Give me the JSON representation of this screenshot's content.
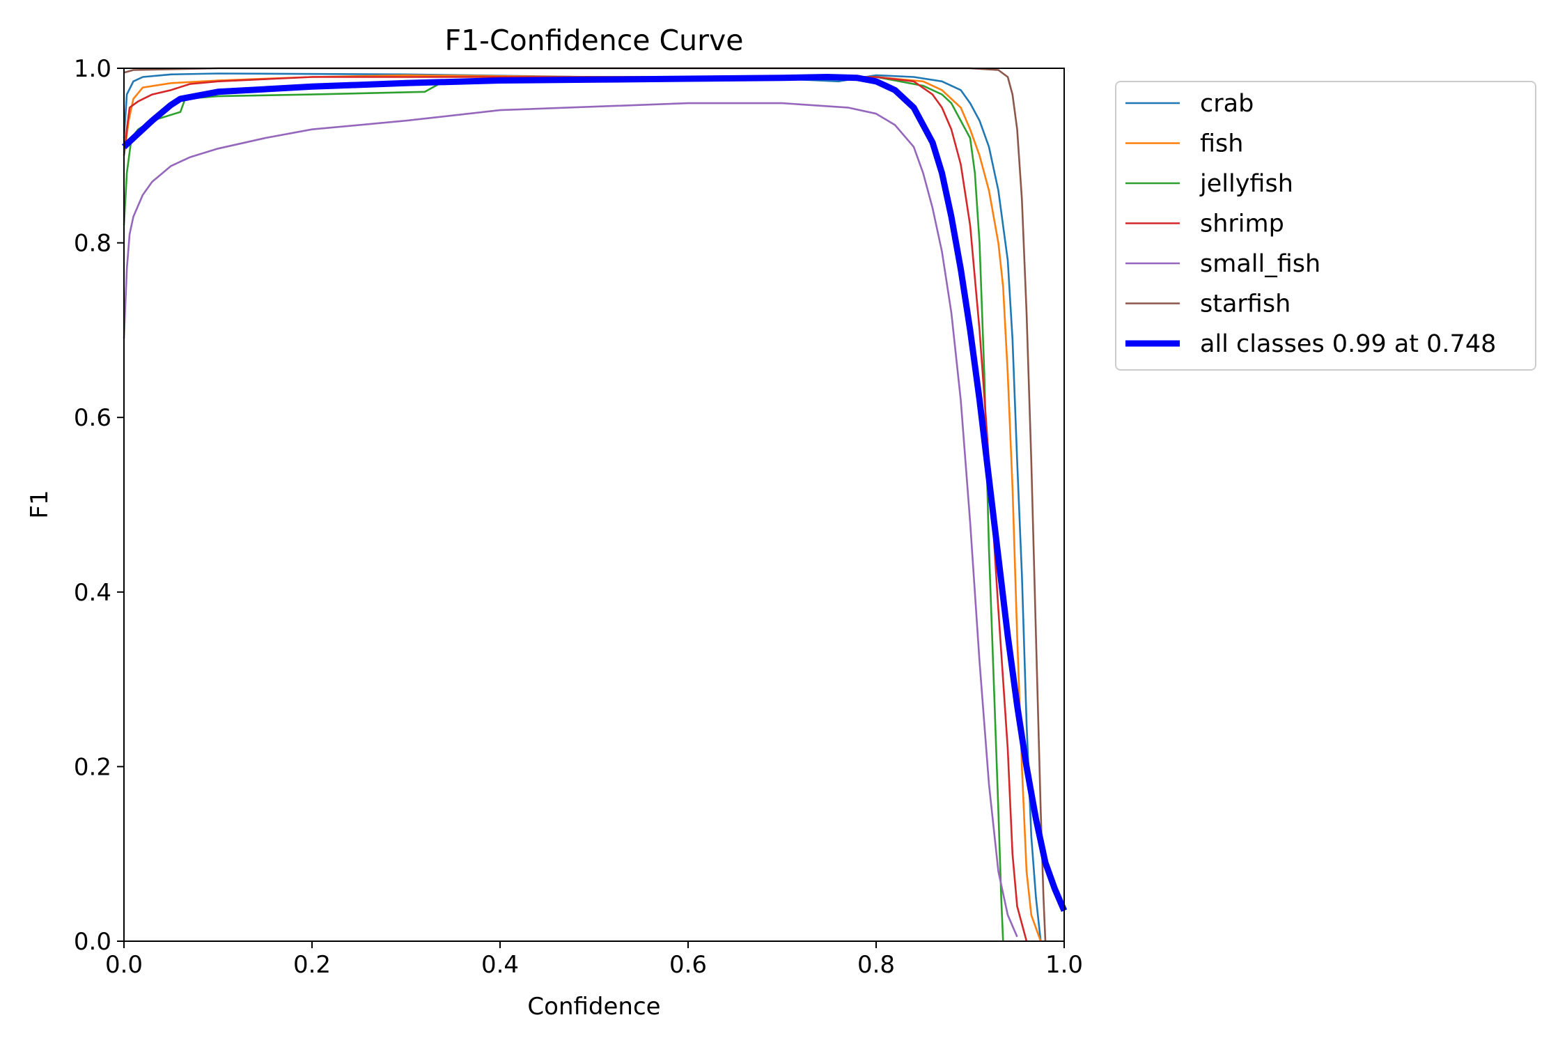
{
  "chart_data": {
    "type": "line",
    "title": "F1-Confidence Curve",
    "xlabel": "Confidence",
    "ylabel": "F1",
    "xlim": [
      0.0,
      1.0
    ],
    "ylim": [
      0.0,
      1.0
    ],
    "x_ticks": [
      "0.0",
      "0.2",
      "0.4",
      "0.6",
      "0.8",
      "1.0"
    ],
    "y_ticks": [
      "0.0",
      "0.2",
      "0.4",
      "0.6",
      "0.8",
      "1.0"
    ],
    "grid": false,
    "legend_position": "outside upper-right",
    "series": [
      {
        "name": "crab",
        "color": "#1f77b4",
        "points": [
          [
            0.0,
            0.92
          ],
          [
            0.003,
            0.97
          ],
          [
            0.01,
            0.985
          ],
          [
            0.02,
            0.99
          ],
          [
            0.05,
            0.993
          ],
          [
            0.1,
            0.994
          ],
          [
            0.3,
            0.993
          ],
          [
            0.5,
            0.99
          ],
          [
            0.7,
            0.988
          ],
          [
            0.76,
            0.985
          ],
          [
            0.8,
            0.992
          ],
          [
            0.84,
            0.99
          ],
          [
            0.87,
            0.985
          ],
          [
            0.89,
            0.975
          ],
          [
            0.9,
            0.96
          ],
          [
            0.91,
            0.94
          ],
          [
            0.92,
            0.91
          ],
          [
            0.93,
            0.86
          ],
          [
            0.94,
            0.78
          ],
          [
            0.945,
            0.69
          ],
          [
            0.95,
            0.55
          ],
          [
            0.955,
            0.42
          ],
          [
            0.96,
            0.25
          ],
          [
            0.965,
            0.12
          ],
          [
            0.97,
            0.05
          ],
          [
            0.975,
            0.0
          ]
        ]
      },
      {
        "name": "fish",
        "color": "#ff7f0e",
        "points": [
          [
            0.0,
            0.9
          ],
          [
            0.005,
            0.94
          ],
          [
            0.01,
            0.965
          ],
          [
            0.02,
            0.978
          ],
          [
            0.05,
            0.983
          ],
          [
            0.1,
            0.986
          ],
          [
            0.2,
            0.99
          ],
          [
            0.3,
            0.992
          ],
          [
            0.5,
            0.99
          ],
          [
            0.7,
            0.99
          ],
          [
            0.8,
            0.99
          ],
          [
            0.85,
            0.985
          ],
          [
            0.87,
            0.975
          ],
          [
            0.89,
            0.955
          ],
          [
            0.9,
            0.93
          ],
          [
            0.91,
            0.9
          ],
          [
            0.92,
            0.86
          ],
          [
            0.93,
            0.8
          ],
          [
            0.935,
            0.75
          ],
          [
            0.94,
            0.65
          ],
          [
            0.945,
            0.52
          ],
          [
            0.95,
            0.35
          ],
          [
            0.955,
            0.2
          ],
          [
            0.96,
            0.08
          ],
          [
            0.965,
            0.03
          ],
          [
            0.975,
            0.0
          ]
        ]
      },
      {
        "name": "jellyfish",
        "color": "#2ca02c",
        "points": [
          [
            0.0,
            0.82
          ],
          [
            0.003,
            0.88
          ],
          [
            0.008,
            0.92
          ],
          [
            0.015,
            0.93
          ],
          [
            0.03,
            0.94
          ],
          [
            0.06,
            0.95
          ],
          [
            0.065,
            0.965
          ],
          [
            0.1,
            0.968
          ],
          [
            0.2,
            0.97
          ],
          [
            0.32,
            0.973
          ],
          [
            0.34,
            0.985
          ],
          [
            0.45,
            0.99
          ],
          [
            0.6,
            0.99
          ],
          [
            0.75,
            0.99
          ],
          [
            0.8,
            0.99
          ],
          [
            0.85,
            0.98
          ],
          [
            0.87,
            0.97
          ],
          [
            0.88,
            0.96
          ],
          [
            0.89,
            0.94
          ],
          [
            0.9,
            0.92
          ],
          [
            0.905,
            0.88
          ],
          [
            0.91,
            0.8
          ],
          [
            0.915,
            0.65
          ],
          [
            0.92,
            0.45
          ],
          [
            0.925,
            0.3
          ],
          [
            0.93,
            0.15
          ],
          [
            0.933,
            0.05
          ],
          [
            0.935,
            0.0
          ]
        ]
      },
      {
        "name": "shrimp",
        "color": "#d62728",
        "points": [
          [
            0.0,
            0.9
          ],
          [
            0.003,
            0.93
          ],
          [
            0.006,
            0.955
          ],
          [
            0.015,
            0.962
          ],
          [
            0.03,
            0.97
          ],
          [
            0.05,
            0.975
          ],
          [
            0.07,
            0.982
          ],
          [
            0.1,
            0.985
          ],
          [
            0.2,
            0.99
          ],
          [
            0.3,
            0.99
          ],
          [
            0.5,
            0.99
          ],
          [
            0.7,
            0.99
          ],
          [
            0.8,
            0.99
          ],
          [
            0.84,
            0.985
          ],
          [
            0.86,
            0.97
          ],
          [
            0.87,
            0.955
          ],
          [
            0.88,
            0.93
          ],
          [
            0.89,
            0.89
          ],
          [
            0.9,
            0.82
          ],
          [
            0.91,
            0.7
          ],
          [
            0.92,
            0.55
          ],
          [
            0.93,
            0.38
          ],
          [
            0.94,
            0.22
          ],
          [
            0.945,
            0.1
          ],
          [
            0.95,
            0.04
          ],
          [
            0.96,
            0.0
          ]
        ]
      },
      {
        "name": "small_fish",
        "color": "#9467bd",
        "points": [
          [
            0.0,
            0.69
          ],
          [
            0.003,
            0.77
          ],
          [
            0.006,
            0.81
          ],
          [
            0.01,
            0.83
          ],
          [
            0.02,
            0.855
          ],
          [
            0.03,
            0.87
          ],
          [
            0.05,
            0.888
          ],
          [
            0.07,
            0.898
          ],
          [
            0.1,
            0.908
          ],
          [
            0.15,
            0.92
          ],
          [
            0.2,
            0.93
          ],
          [
            0.3,
            0.94
          ],
          [
            0.4,
            0.952
          ],
          [
            0.5,
            0.956
          ],
          [
            0.6,
            0.96
          ],
          [
            0.7,
            0.96
          ],
          [
            0.77,
            0.955
          ],
          [
            0.8,
            0.948
          ],
          [
            0.82,
            0.935
          ],
          [
            0.84,
            0.91
          ],
          [
            0.85,
            0.88
          ],
          [
            0.86,
            0.84
          ],
          [
            0.87,
            0.79
          ],
          [
            0.88,
            0.72
          ],
          [
            0.89,
            0.62
          ],
          [
            0.9,
            0.48
          ],
          [
            0.91,
            0.32
          ],
          [
            0.92,
            0.18
          ],
          [
            0.93,
            0.08
          ],
          [
            0.94,
            0.03
          ],
          [
            0.95,
            0.005
          ]
        ]
      },
      {
        "name": "starfish",
        "color": "#8c564b",
        "points": [
          [
            0.0,
            0.995
          ],
          [
            0.01,
            0.998
          ],
          [
            0.1,
            1.0
          ],
          [
            0.5,
            1.0
          ],
          [
            0.9,
            1.0
          ],
          [
            0.93,
            0.998
          ],
          [
            0.94,
            0.99
          ],
          [
            0.945,
            0.97
          ],
          [
            0.95,
            0.93
          ],
          [
            0.955,
            0.85
          ],
          [
            0.96,
            0.72
          ],
          [
            0.965,
            0.55
          ],
          [
            0.97,
            0.35
          ],
          [
            0.975,
            0.15
          ],
          [
            0.978,
            0.05
          ],
          [
            0.98,
            0.0
          ]
        ]
      },
      {
        "name": "all classes 0.99 at 0.748",
        "color": "#0000ff",
        "thick": true,
        "points": [
          [
            0.0,
            0.91
          ],
          [
            0.01,
            0.92
          ],
          [
            0.03,
            0.94
          ],
          [
            0.05,
            0.958
          ],
          [
            0.06,
            0.965
          ],
          [
            0.1,
            0.973
          ],
          [
            0.2,
            0.979
          ],
          [
            0.3,
            0.983
          ],
          [
            0.4,
            0.986
          ],
          [
            0.5,
            0.987
          ],
          [
            0.6,
            0.988
          ],
          [
            0.7,
            0.989
          ],
          [
            0.748,
            0.99
          ],
          [
            0.78,
            0.989
          ],
          [
            0.8,
            0.985
          ],
          [
            0.82,
            0.975
          ],
          [
            0.84,
            0.955
          ],
          [
            0.86,
            0.915
          ],
          [
            0.87,
            0.88
          ],
          [
            0.88,
            0.83
          ],
          [
            0.89,
            0.77
          ],
          [
            0.9,
            0.7
          ],
          [
            0.91,
            0.62
          ],
          [
            0.92,
            0.53
          ],
          [
            0.93,
            0.44
          ],
          [
            0.94,
            0.35
          ],
          [
            0.95,
            0.27
          ],
          [
            0.96,
            0.2
          ],
          [
            0.97,
            0.14
          ],
          [
            0.98,
            0.09
          ],
          [
            0.99,
            0.06
          ],
          [
            1.0,
            0.035
          ]
        ]
      }
    ]
  }
}
